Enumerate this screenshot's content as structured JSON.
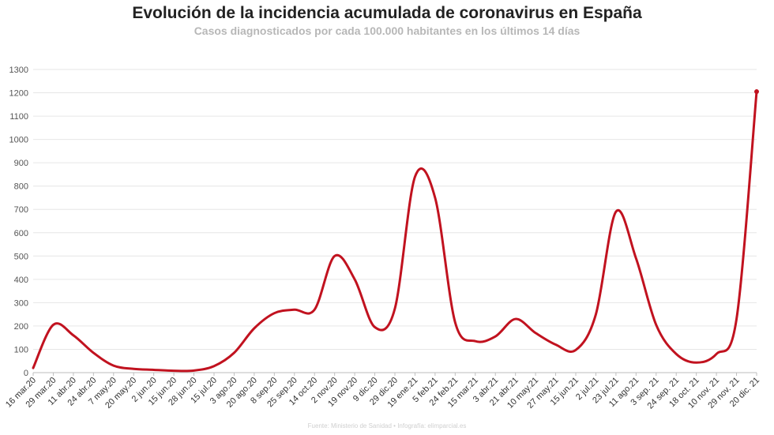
{
  "title": "Evolución de la incidencia acumulada de coronavirus en España",
  "subtitle": "Casos diagnosticados por cada 100.000 habitantes en los últimos 14 días",
  "source": "Fuente: Ministerio de Sanidad • Infografía: elimparcial.es",
  "chart_data": {
    "type": "line",
    "title": "Evolución de la incidencia acumulada de coronavirus en España",
    "subtitle": "Casos diagnosticados por cada 100.000 habitantes en los últimos 14 días",
    "xlabel": "",
    "ylabel": "",
    "ylim": [
      0,
      1300
    ],
    "yticks": [
      0,
      100,
      200,
      300,
      400,
      500,
      600,
      700,
      800,
      900,
      1000,
      1100,
      1200,
      1300
    ],
    "grid": true,
    "color": "#c1121f",
    "categories": [
      "16 mar.20",
      "29 mar.20",
      "11 abr.20",
      "24 abr.20",
      "7 may.20",
      "20 may.20",
      "2 jun.20",
      "15 jun.20",
      "28 jun.20",
      "15 jul.20",
      "3 ago.20",
      "20 ago.20",
      "8 sep.20",
      "25 sep.20",
      "14 oct.20",
      "2 nov.20",
      "19 nov.20",
      "9 dic.20",
      "29 dic.20",
      "19 ene.21",
      "5 feb.21",
      "24 feb.21",
      "15 mar.21",
      "3 abr.21",
      "21 abr.21",
      "10 may.21",
      "27 may.21",
      "15 jun.21",
      "2 jul.21",
      "23 jul.21",
      "11 ago.21",
      "3 sep. 21",
      "24 sep. 21",
      "18 oct. 21",
      "10 nov. 21",
      "29 nov. 21",
      "20 dic. 21"
    ],
    "values": [
      20,
      205,
      160,
      85,
      30,
      16,
      12,
      8,
      9,
      28,
      85,
      190,
      255,
      270,
      270,
      500,
      400,
      195,
      275,
      840,
      750,
      215,
      135,
      155,
      230,
      170,
      120,
      97,
      250,
      690,
      490,
      205,
      80,
      43,
      80,
      230,
      1205
    ]
  }
}
